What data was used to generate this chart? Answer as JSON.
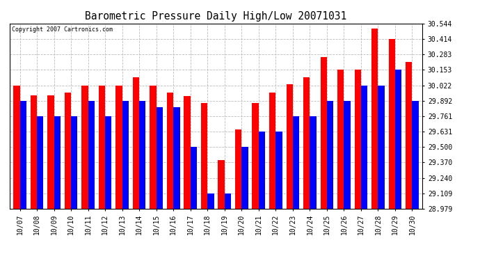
{
  "title": "Barometric Pressure Daily High/Low 20071031",
  "copyright": "Copyright 2007 Cartronics.com",
  "dates": [
    "10/07",
    "10/08",
    "10/09",
    "10/10",
    "10/11",
    "10/12",
    "10/13",
    "10/14",
    "10/15",
    "10/16",
    "10/17",
    "10/18",
    "10/19",
    "10/20",
    "10/21",
    "10/22",
    "10/23",
    "10/24",
    "10/25",
    "10/26",
    "10/27",
    "10/28",
    "10/29",
    "10/30"
  ],
  "highs": [
    30.022,
    29.94,
    29.94,
    29.96,
    30.022,
    30.022,
    30.022,
    30.09,
    30.022,
    29.96,
    29.93,
    29.87,
    29.39,
    29.65,
    29.87,
    29.96,
    30.03,
    30.09,
    30.26,
    30.153,
    30.153,
    30.5,
    30.414,
    30.22
  ],
  "lows": [
    29.892,
    29.761,
    29.761,
    29.761,
    29.892,
    29.761,
    29.892,
    29.892,
    29.84,
    29.84,
    29.5,
    29.109,
    29.109,
    29.5,
    29.631,
    29.631,
    29.761,
    29.761,
    29.892,
    29.892,
    30.022,
    30.022,
    30.153,
    29.892
  ],
  "ylim_min": 28.979,
  "ylim_max": 30.544,
  "yticks": [
    28.979,
    29.109,
    29.24,
    29.37,
    29.5,
    29.631,
    29.761,
    29.892,
    30.022,
    30.153,
    30.283,
    30.414,
    30.544
  ],
  "high_color": "#ff0000",
  "low_color": "#0000ff",
  "bg_color": "#ffffff",
  "grid_color": "#bbbbbb",
  "bar_width": 0.38
}
